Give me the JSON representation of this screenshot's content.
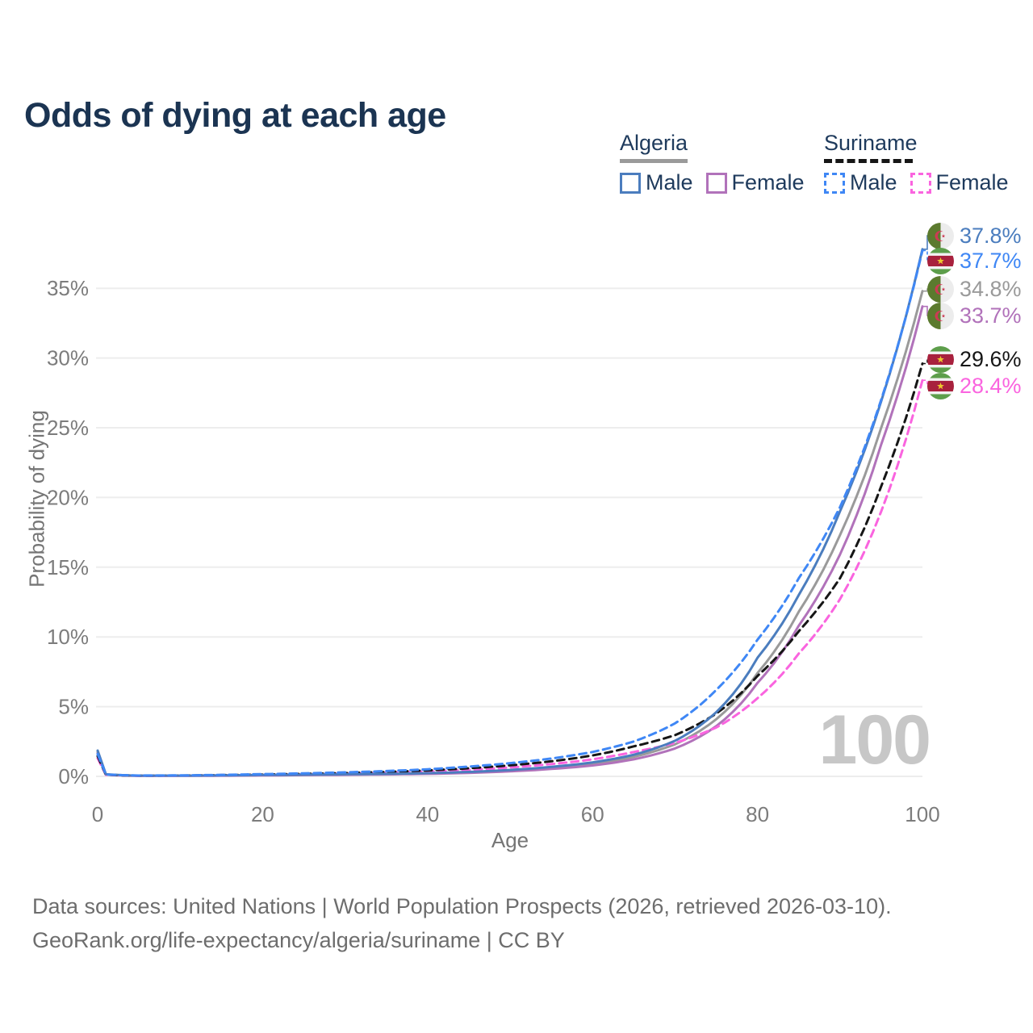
{
  "header": {
    "title": "Odds of dying at each age"
  },
  "legend": {
    "groups": [
      {
        "country": "Algeria",
        "line_color": "#9a9a9a",
        "line_style": "solid",
        "items": [
          {
            "label": "Male",
            "color": "#4b7dbe",
            "style": "solid"
          },
          {
            "label": "Female",
            "color": "#b172ba",
            "style": "solid"
          }
        ]
      },
      {
        "country": "Suriname",
        "line_color": "#161616",
        "line_style": "dashed",
        "items": [
          {
            "label": "Male",
            "color": "#3f87f5",
            "style": "dashed"
          },
          {
            "label": "Female",
            "color": "#fa64df",
            "style": "dashed"
          }
        ]
      }
    ]
  },
  "chart_data": {
    "type": "line",
    "title": "Odds of dying at each age",
    "xlabel": "Age",
    "ylabel": "Probability of dying",
    "watermark": "100",
    "grid": "horizontal",
    "legend_position": "top-right",
    "xlim": [
      0,
      100
    ],
    "ylim_pct": [
      0,
      38.5
    ],
    "x_ticks": [
      0,
      20,
      40,
      60,
      80,
      100
    ],
    "y_ticks": [
      "0%",
      "5%",
      "10%",
      "15%",
      "20%",
      "25%",
      "30%",
      "35%"
    ],
    "x": [
      0,
      1,
      5,
      10,
      15,
      20,
      25,
      30,
      35,
      40,
      45,
      50,
      55,
      60,
      65,
      70,
      75,
      80,
      85,
      90,
      95,
      100
    ],
    "series": [
      {
        "name": "Algeria Male",
        "color": "#4b7dbe",
        "dashed": false,
        "end_value_pct": 37.8,
        "values": [
          1.85,
          0.15,
          0.05,
          0.05,
          0.07,
          0.1,
          0.12,
          0.15,
          0.18,
          0.23,
          0.32,
          0.46,
          0.68,
          1.0,
          1.55,
          2.55,
          4.6,
          8.5,
          13.0,
          19.0,
          26.9,
          37.8
        ]
      },
      {
        "name": "Suriname Male",
        "color": "#3f87f5",
        "dashed": true,
        "end_value_pct": 37.7,
        "values": [
          1.6,
          0.13,
          0.06,
          0.07,
          0.11,
          0.16,
          0.22,
          0.29,
          0.38,
          0.51,
          0.7,
          0.95,
          1.28,
          1.75,
          2.5,
          3.8,
          6.2,
          9.8,
          14.2,
          19.3,
          27.0,
          37.7
        ]
      },
      {
        "name": "Algeria Both sexes",
        "color": "#9a9a9a",
        "dashed": false,
        "end_value_pct": 34.8,
        "values": [
          1.75,
          0.14,
          0.04,
          0.05,
          0.06,
          0.09,
          0.11,
          0.13,
          0.16,
          0.21,
          0.29,
          0.42,
          0.62,
          0.9,
          1.4,
          2.3,
          4.1,
          7.4,
          11.8,
          17.3,
          25.0,
          34.8
        ]
      },
      {
        "name": "Algeria Female",
        "color": "#b172ba",
        "dashed": false,
        "end_value_pct": 33.7,
        "values": [
          1.65,
          0.13,
          0.04,
          0.04,
          0.05,
          0.07,
          0.09,
          0.11,
          0.14,
          0.18,
          0.25,
          0.36,
          0.53,
          0.78,
          1.22,
          2.0,
          3.6,
          6.7,
          10.8,
          15.9,
          23.8,
          33.7
        ]
      },
      {
        "name": "Suriname Both sexes",
        "color": "#161616",
        "dashed": true,
        "end_value_pct": 29.6,
        "values": [
          1.45,
          0.12,
          0.05,
          0.06,
          0.09,
          0.13,
          0.18,
          0.24,
          0.32,
          0.43,
          0.58,
          0.79,
          1.08,
          1.5,
          2.15,
          2.95,
          4.5,
          7.2,
          10.4,
          14.2,
          20.8,
          29.6
        ]
      },
      {
        "name": "Suriname Female",
        "color": "#fa64df",
        "dashed": true,
        "end_value_pct": 28.4,
        "values": [
          1.3,
          0.11,
          0.04,
          0.05,
          0.07,
          0.1,
          0.14,
          0.19,
          0.26,
          0.35,
          0.47,
          0.64,
          0.88,
          1.22,
          1.75,
          2.4,
          3.5,
          5.6,
          8.8,
          12.7,
          19.0,
          28.4
        ]
      }
    ]
  },
  "end_labels": [
    {
      "value": "37.8%",
      "flag": "algeria",
      "color": "#4b7dbe"
    },
    {
      "value": "37.7%",
      "flag": "suriname",
      "color": "#3f87f5"
    },
    {
      "value": "34.8%",
      "flag": "algeria",
      "color": "#9a9a9a"
    },
    {
      "value": "33.7%",
      "flag": "algeria",
      "color": "#b172ba"
    },
    {
      "value": "29.6%",
      "flag": "suriname",
      "color": "#161616"
    },
    {
      "value": "28.4%",
      "flag": "suriname",
      "color": "#fa64df"
    }
  ],
  "footer": {
    "line1": "Data sources: United Nations | World Population Prospects (2026, retrieved 2026-03-10).",
    "line2": "GeoRank.org/life-expectancy/algeria/suriname | CC BY"
  }
}
